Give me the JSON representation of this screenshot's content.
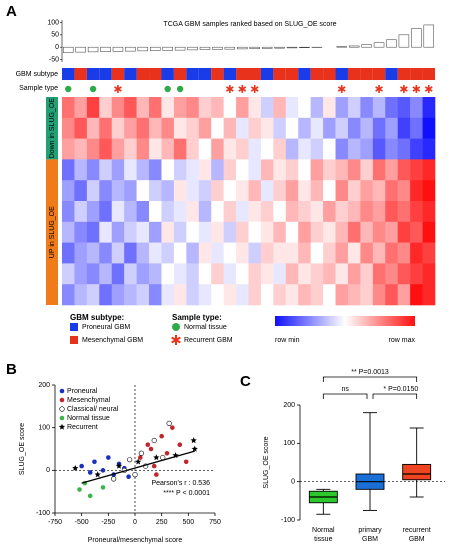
{
  "chart_data": [
    {
      "type": "bar",
      "panel": "A",
      "title": "TCGA GBM samples ranked based on SLUG_OE score",
      "values": [
        -22,
        -20,
        -19,
        -18,
        -17,
        -16,
        -15,
        -14,
        -13,
        -12,
        -11,
        -10,
        -9,
        -8,
        -7,
        -6,
        -5,
        -4,
        -3,
        -2,
        -1,
        0,
        2,
        5,
        10,
        18,
        30,
        50,
        75,
        90
      ],
      "color": "#ffffff",
      "ylim": [
        -60,
        110
      ],
      "yticks": [
        -50,
        0,
        50,
        100
      ]
    },
    {
      "type": "heatmap",
      "track_labels": [
        "GBM subtype",
        "Sample type"
      ],
      "subtypes": [
        "Proneural GBM",
        "Mesenchymal GBM",
        "Proneural GBM",
        "Proneural GBM",
        "Mesenchymal GBM",
        "Proneural GBM",
        "Mesenchymal GBM",
        "Mesenchymal GBM",
        "Proneural GBM",
        "Mesenchymal GBM",
        "Proneural GBM",
        "Proneural GBM",
        "Mesenchymal GBM",
        "Proneural GBM",
        "Mesenchymal GBM",
        "Mesenchymal GBM",
        "Proneural GBM",
        "Mesenchymal GBM",
        "Mesenchymal GBM",
        "Proneural GBM",
        "Mesenchymal GBM",
        "Mesenchymal GBM",
        "Proneural GBM",
        "Mesenchymal GBM",
        "Mesenchymal GBM",
        "Mesenchymal GBM",
        "Proneural GBM",
        "Mesenchymal GBM",
        "Mesenchymal GBM",
        "Mesenchymal GBM"
      ],
      "sample_types": [
        "Normal tissue",
        null,
        "Normal tissue",
        null,
        "Recurrent GBM",
        null,
        null,
        null,
        "Normal tissue",
        "Normal tissue",
        null,
        null,
        null,
        "Recurrent GBM",
        "Recurrent GBM",
        "Recurrent GBM",
        null,
        null,
        null,
        null,
        null,
        null,
        "Recurrent GBM",
        null,
        null,
        "Recurrent GBM",
        null,
        "Recurrent GBM",
        "Recurrent GBM",
        "Recurrent GBM"
      ],
      "row_groups": [
        {
          "label": "Down in SLUG_OE",
          "color": "#22a075",
          "rows": 3
        },
        {
          "label": "UP in SLUG_OE",
          "color": "#ef7b1a",
          "rows": 7
        }
      ],
      "matrix": [
        [
          0.6,
          0.4,
          0.8,
          0.2,
          0.5,
          0.7,
          0.3,
          0.6,
          0.1,
          0.4,
          0.5,
          0.2,
          0.3,
          0.0,
          0.4,
          0.1,
          -0.2,
          0.3,
          -0.1,
          0.0,
          -0.3,
          0.1,
          -0.4,
          -0.2,
          -0.5,
          -0.3,
          -0.6,
          -0.7,
          -0.5,
          -0.9
        ],
        [
          0.5,
          0.7,
          0.3,
          0.6,
          0.2,
          0.4,
          0.6,
          0.3,
          0.5,
          0.1,
          0.2,
          0.4,
          0.0,
          0.3,
          -0.1,
          0.2,
          0.1,
          -0.2,
          0.0,
          -0.3,
          -0.1,
          -0.4,
          -0.2,
          -0.5,
          -0.3,
          -0.6,
          -0.4,
          -0.8,
          -0.6,
          -1.0
        ],
        [
          0.4,
          0.3,
          0.5,
          0.7,
          0.4,
          0.2,
          0.5,
          0.1,
          0.3,
          0.6,
          0.2,
          0.0,
          0.4,
          0.1,
          0.2,
          -0.1,
          0.0,
          0.2,
          -0.3,
          -0.1,
          -0.2,
          0.0,
          -0.5,
          -0.3,
          -0.4,
          -0.7,
          -0.5,
          -0.6,
          -0.8,
          -0.9
        ],
        [
          -0.6,
          -0.3,
          -0.5,
          -0.2,
          -0.4,
          -0.1,
          -0.3,
          -0.5,
          0.0,
          -0.2,
          -0.1,
          0.1,
          -0.3,
          0.2,
          0.0,
          -0.1,
          0.3,
          0.1,
          0.2,
          0.0,
          0.4,
          0.2,
          0.3,
          0.5,
          0.2,
          0.6,
          0.4,
          0.7,
          0.8,
          0.9
        ],
        [
          -0.4,
          -0.6,
          -0.2,
          -0.5,
          -0.3,
          -0.4,
          0.0,
          -0.2,
          -0.3,
          0.1,
          -0.1,
          -0.2,
          0.2,
          0.0,
          0.1,
          0.3,
          -0.1,
          0.2,
          0.4,
          0.1,
          0.3,
          0.0,
          0.5,
          0.2,
          0.4,
          0.3,
          0.6,
          0.5,
          0.9,
          1.0
        ],
        [
          -0.5,
          -0.2,
          -0.4,
          -0.6,
          -0.1,
          -0.3,
          -0.5,
          0.0,
          -0.2,
          -0.1,
          0.1,
          -0.3,
          0.0,
          0.2,
          -0.1,
          0.1,
          0.2,
          0.0,
          0.3,
          0.2,
          0.1,
          0.4,
          0.2,
          0.3,
          0.5,
          0.4,
          0.7,
          0.6,
          0.8,
          0.9
        ],
        [
          -0.3,
          -0.5,
          -0.6,
          -0.1,
          -0.4,
          -0.2,
          -0.1,
          -0.4,
          0.1,
          -0.2,
          0.0,
          -0.1,
          0.1,
          -0.2,
          0.2,
          0.0,
          0.1,
          0.3,
          0.0,
          0.4,
          0.2,
          0.1,
          0.3,
          0.6,
          0.3,
          0.5,
          0.4,
          0.8,
          0.7,
          1.0
        ],
        [
          -0.6,
          -0.4,
          -0.3,
          -0.5,
          -0.2,
          -0.6,
          -0.3,
          -0.1,
          -0.2,
          0.0,
          -0.3,
          0.1,
          -0.1,
          0.0,
          0.1,
          -0.2,
          0.2,
          0.1,
          0.1,
          0.3,
          0.0,
          0.2,
          0.4,
          0.1,
          0.5,
          0.3,
          0.6,
          0.5,
          0.9,
          0.8
        ],
        [
          -0.2,
          -0.4,
          -0.5,
          -0.3,
          -0.6,
          -0.2,
          -0.4,
          -0.3,
          0.0,
          -0.1,
          -0.2,
          0.0,
          0.2,
          -0.1,
          0.0,
          0.2,
          0.1,
          -0.1,
          0.3,
          0.1,
          0.2,
          0.3,
          0.1,
          0.4,
          0.2,
          0.6,
          0.5,
          0.7,
          0.8,
          0.9
        ],
        [
          -0.5,
          -0.3,
          -0.2,
          -0.6,
          -0.4,
          -0.3,
          -0.2,
          -0.5,
          -0.1,
          0.1,
          -0.2,
          -0.1,
          0.0,
          0.1,
          -0.1,
          0.2,
          0.0,
          0.2,
          0.1,
          0.3,
          0.2,
          0.0,
          0.4,
          0.3,
          0.2,
          0.5,
          0.7,
          0.4,
          1.0,
          0.9
        ]
      ],
      "zlim": [
        -1,
        1
      ],
      "colors": [
        "#1010ff",
        "#ffffff",
        "#ff1010"
      ],
      "colorbar_labels": [
        "row min",
        "row max"
      ],
      "subtype_legend": {
        "title": "GBM subtype:",
        "items": [
          {
            "name": "Proneural GBM",
            "color": "#1a3ce8"
          },
          {
            "name": "Mesenchymal GBM",
            "color": "#e8321c"
          }
        ]
      },
      "sample_legend": {
        "title": "Sample type:",
        "items": [
          {
            "name": "Normal tissue",
            "color": "#2eaa4a",
            "marker": "circle"
          },
          {
            "name": "Recurrent GBM",
            "color": "#e8321c",
            "marker": "asterisk"
          }
        ]
      }
    },
    {
      "type": "scatter",
      "panel": "B",
      "xlabel": "Proneural/mesenchymal score",
      "ylabel": "SLUG_OE score",
      "xlim": [
        -750,
        750
      ],
      "xticks": [
        -750,
        -500,
        -250,
        0,
        250,
        500,
        750
      ],
      "ylim": [
        -100,
        200
      ],
      "yticks": [
        -100,
        0,
        100,
        200
      ],
      "series": [
        {
          "name": "Proneural",
          "color": "#1a2fbf",
          "marker": "circle",
          "x": [
            -500,
            -420,
            -380,
            -300,
            -250,
            -200,
            -150,
            -100,
            -60
          ],
          "y": [
            10,
            -5,
            20,
            0,
            30,
            -10,
            15,
            5,
            -15
          ]
        },
        {
          "name": "Mesenchymal",
          "color": "#c0262b",
          "marker": "circle",
          "x": [
            50,
            120,
            180,
            250,
            300,
            350,
            420,
            480,
            200,
            150
          ],
          "y": [
            30,
            60,
            10,
            80,
            40,
            100,
            60,
            20,
            -10,
            50
          ]
        },
        {
          "name": "Classical/ neural",
          "color": "#ffffff",
          "marker": "open",
          "x": [
            -200,
            -100,
            -50,
            0,
            60,
            100,
            180,
            260,
            320
          ],
          "y": [
            -20,
            0,
            25,
            -10,
            40,
            10,
            70,
            30,
            110
          ]
        },
        {
          "name": "Normal tissue",
          "color": "#3cb44b",
          "marker": "circle",
          "x": [
            -520,
            -470,
            -420,
            -300
          ],
          "y": [
            -45,
            -30,
            -60,
            -40
          ]
        },
        {
          "name": "Recurrent",
          "color": "#000000",
          "marker": "star",
          "x": [
            -560,
            -350,
            -150,
            30,
            200,
            380,
            550,
            560
          ],
          "y": [
            5,
            -10,
            10,
            20,
            30,
            35,
            70,
            50
          ]
        }
      ],
      "regression": {
        "x": [
          -500,
          560
        ],
        "y": [
          -30,
          45
        ]
      },
      "zero_lines": true,
      "annotations": [
        "Pearson's r : 0.536",
        "**** P < 0.0001"
      ]
    },
    {
      "type": "box",
      "panel": "C",
      "ylabel": "SLUG_OE score",
      "categories": [
        "Normal tissue",
        "primary GBM",
        "recurrent GBM"
      ],
      "colors": [
        "#2dc82d",
        "#1a6fd6",
        "#ee4422"
      ],
      "ylim": [
        -100,
        200
      ],
      "yticks": [
        -100,
        0,
        100,
        200
      ],
      "zero_line": true,
      "whislo": [
        -85,
        -75,
        -40
      ],
      "q1": [
        -55,
        -20,
        5
      ],
      "median": [
        -40,
        0,
        20
      ],
      "q3": [
        -25,
        20,
        45
      ],
      "whishi": [
        -20,
        180,
        140
      ],
      "brackets": [
        "ns",
        "* P=0.0150",
        "** P=0.0013"
      ]
    }
  ]
}
